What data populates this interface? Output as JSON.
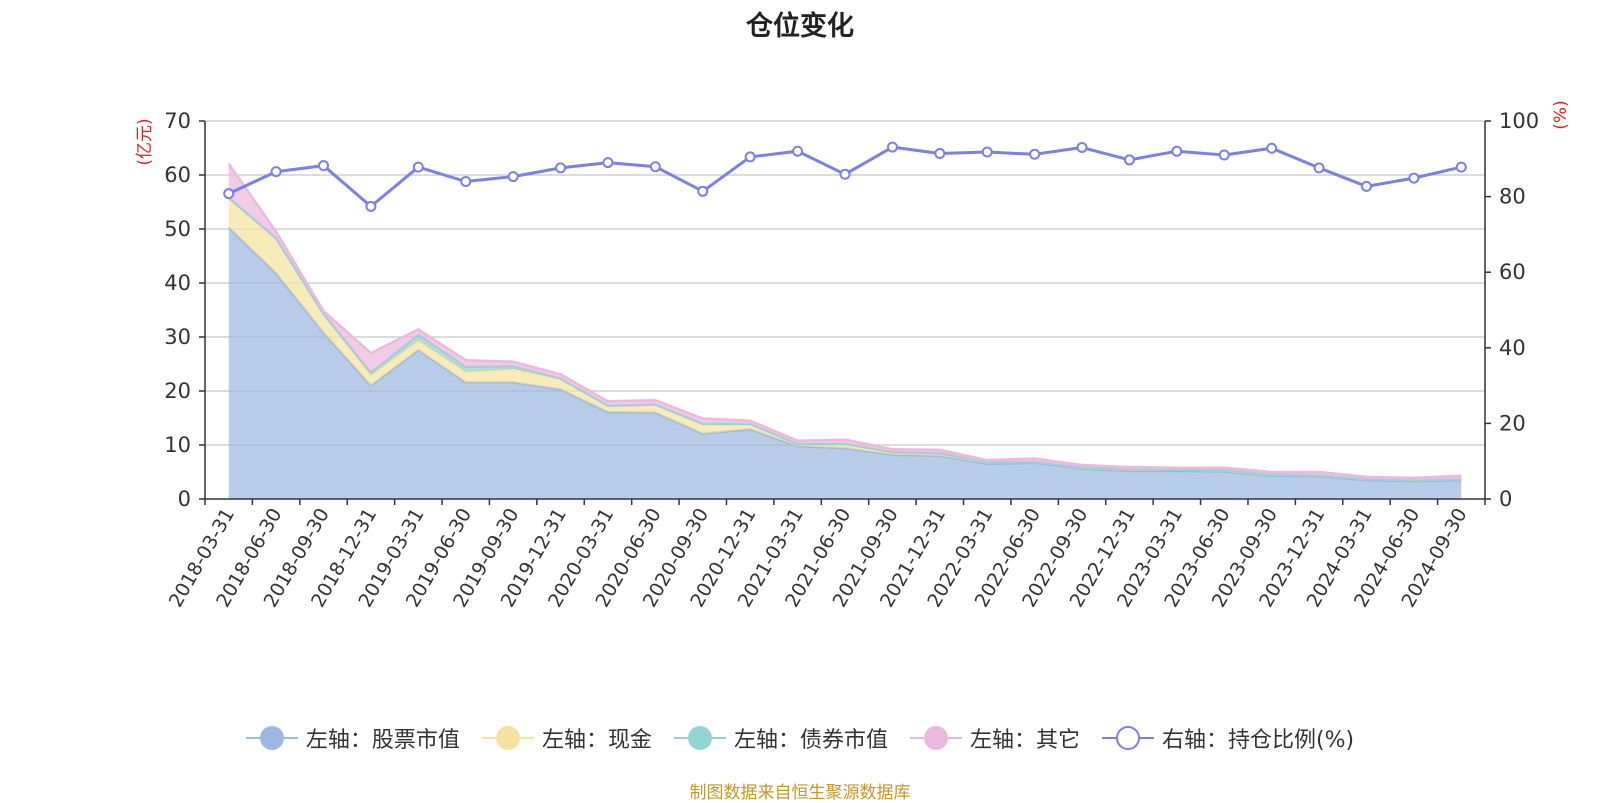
{
  "chart_data": {
    "type": "area",
    "title": "仓位变化",
    "left_axis": {
      "unit_label": "(亿元)",
      "ticks": [
        "0",
        "10",
        "20",
        "30",
        "40",
        "50",
        "60",
        "70"
      ],
      "ylim": [
        0,
        70
      ]
    },
    "right_axis": {
      "unit_label": "(%)",
      "ticks": [
        "0",
        "20",
        "40",
        "60",
        "80",
        "100"
      ],
      "ylim": [
        0,
        100
      ]
    },
    "categories": [
      "2018-03-31",
      "2018-06-30",
      "2018-09-30",
      "2018-12-31",
      "2019-03-31",
      "2019-06-30",
      "2019-09-30",
      "2019-12-31",
      "2020-03-31",
      "2020-06-30",
      "2020-09-30",
      "2020-12-31",
      "2021-03-31",
      "2021-06-30",
      "2021-09-30",
      "2021-12-31",
      "2022-03-31",
      "2022-06-30",
      "2022-09-30",
      "2022-12-31",
      "2023-03-31",
      "2023-06-30",
      "2023-09-30",
      "2023-12-31",
      "2024-03-31",
      "2024-06-30",
      "2024-09-30"
    ],
    "series": [
      {
        "name": "左轴：股票市值",
        "axis": "left",
        "type": "area",
        "color": "#9bb8e0",
        "values": [
          50.3,
          41.8,
          30.8,
          21.0,
          27.6,
          21.6,
          21.6,
          20.3,
          16.1,
          16.0,
          12.1,
          12.9,
          9.8,
          9.4,
          8.2,
          8.0,
          6.5,
          6.7,
          5.6,
          5.2,
          5.2,
          5.1,
          4.3,
          4.2,
          3.5,
          3.3,
          3.5
        ]
      },
      {
        "name": "左轴：现金",
        "axis": "left",
        "type": "area",
        "color": "#f6e2a0",
        "values": [
          5.5,
          6.5,
          3.5,
          2.0,
          1.8,
          2.0,
          2.5,
          2.0,
          1.2,
          1.5,
          1.8,
          1.0,
          0.4,
          0.8,
          0.5,
          0.5,
          0.3,
          0.2,
          0.3,
          0.3,
          0.2,
          0.3,
          0.3,
          0.2,
          0.2,
          0.2,
          0.2
        ]
      },
      {
        "name": "左轴：债券市值",
        "axis": "left",
        "type": "area",
        "color": "#90d4d4",
        "values": [
          0,
          0,
          0,
          0.4,
          1.0,
          0.9,
          0.5,
          0,
          0,
          0,
          0,
          0,
          0,
          0,
          0,
          0,
          0,
          0,
          0,
          0,
          0,
          0,
          0,
          0,
          0,
          0,
          0
        ]
      },
      {
        "name": "左轴：其它",
        "axis": "left",
        "type": "area",
        "color": "#ebb8de",
        "values": [
          6.3,
          1.2,
          0.5,
          3.6,
          1.0,
          1.2,
          0.8,
          0.8,
          0.8,
          0.8,
          1.0,
          0.6,
          0.6,
          0.8,
          0.5,
          0.6,
          0.4,
          0.6,
          0.4,
          0.4,
          0.4,
          0.4,
          0.4,
          0.6,
          0.4,
          0.4,
          0.6
        ]
      },
      {
        "name": "右轴：持仓比例(%)",
        "axis": "right",
        "type": "line",
        "color": "#7b7fe8",
        "values": [
          80.8,
          86.6,
          88.2,
          77.4,
          87.8,
          84.0,
          85.3,
          87.6,
          89.0,
          87.9,
          81.4,
          90.5,
          92.0,
          85.9,
          93.1,
          91.4,
          91.8,
          91.2,
          93.0,
          89.7,
          92.0,
          91.0,
          92.8,
          87.6,
          82.7,
          84.9,
          87.8
        ]
      }
    ],
    "source_note": "制图数据来自恒生聚源数据库"
  }
}
